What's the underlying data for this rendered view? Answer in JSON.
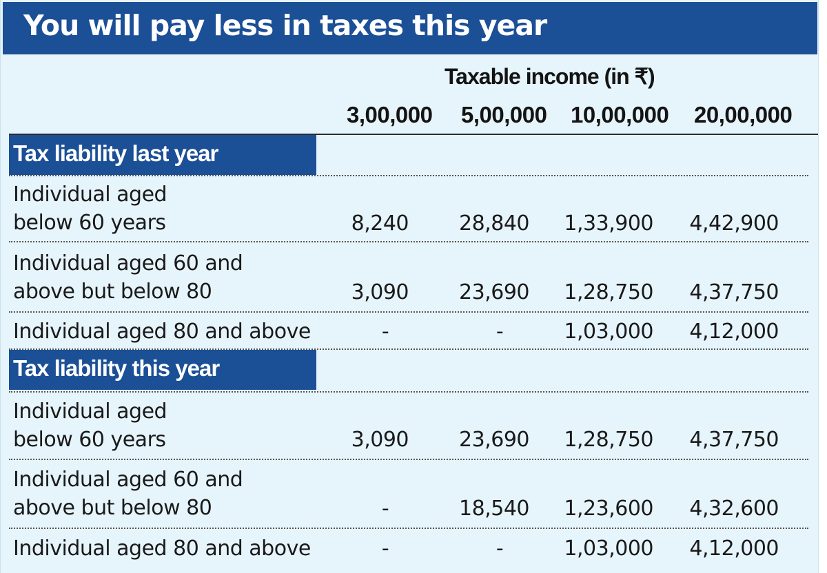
{
  "title": "You will pay less in taxes this year",
  "income_label": "Taxable income (in ₹)",
  "columns": [
    "3,00,000",
    "5,00,000",
    "10,00,000",
    "20,00,000"
  ],
  "sections": [
    {
      "heading": "Tax liability last year",
      "rows": [
        {
          "label_line1": "Individual aged",
          "label_line2": "below 60 years",
          "values": [
            "8,240",
            "28,840",
            "1,33,900",
            "4,42,900"
          ]
        },
        {
          "label_line1": "Individual aged 60 and",
          "label_line2": "above but below 80",
          "values": [
            "3,090",
            "23,690",
            "1,28,750",
            "4,37,750"
          ]
        },
        {
          "label_line1": "Individual aged 80 and above",
          "values": [
            "-",
            "-",
            "1,03,000",
            "4,12,000"
          ]
        }
      ]
    },
    {
      "heading": "Tax liability this year",
      "rows": [
        {
          "label_line1": "Individual aged",
          "label_line2": "below 60 years",
          "values": [
            "3,090",
            "23,690",
            "1,28,750",
            "4,37,750"
          ]
        },
        {
          "label_line1": "Individual aged 60 and",
          "label_line2": "above but below 80",
          "values": [
            "-",
            "18,540",
            "1,23,600",
            "4,32,600"
          ]
        },
        {
          "label_line1": "Individual aged 80 and above",
          "values": [
            "-",
            "-",
            "1,03,000",
            "4,12,000"
          ]
        }
      ]
    }
  ]
}
